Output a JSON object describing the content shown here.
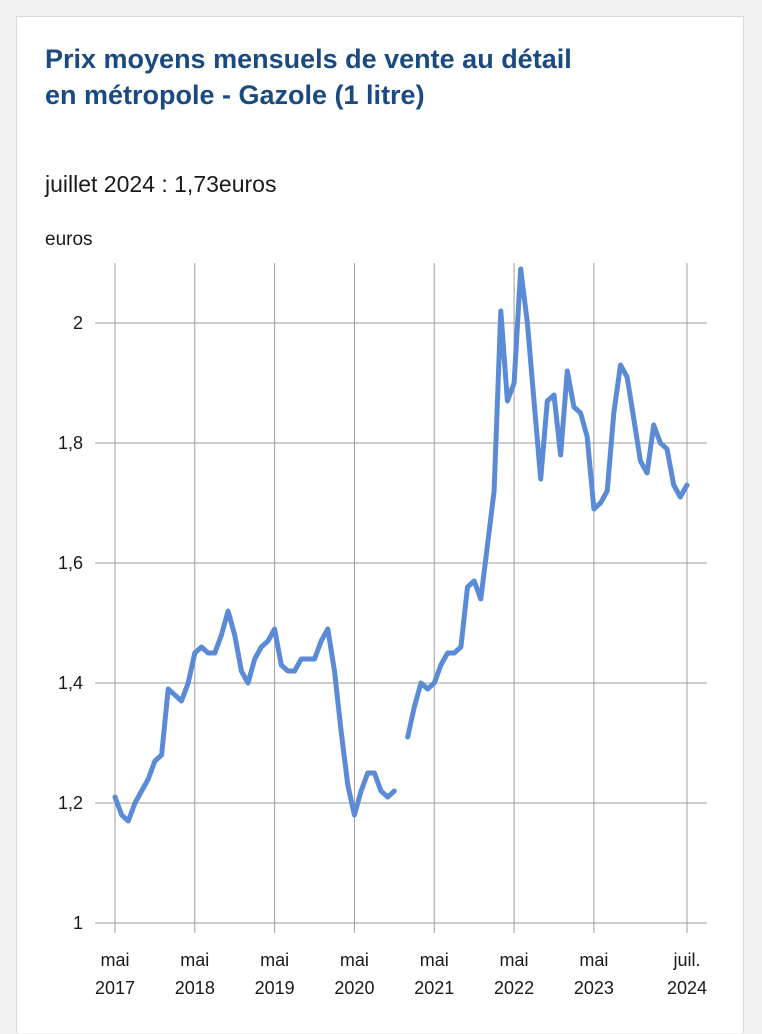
{
  "header": {
    "title": "Prix moyens mensuels de vente au détail en métropole - Gazole (1 litre)",
    "subtitle": "juillet 2024 : 1,73euros",
    "unit": "euros"
  },
  "colors": {
    "line": "#5b8bd6",
    "title": "#1b4a80",
    "grid": "#9e9e9e"
  },
  "chart_data": {
    "type": "line",
    "title": "Prix moyens mensuels de vente au détail en métropole - Gazole (1 litre)",
    "subtitle": "juillet 2024 : 1,73euros",
    "ylabel": "euros",
    "ylim": [
      1,
      2.1
    ],
    "yticks": [
      1,
      1.2,
      1.4,
      1.6,
      1.8,
      2
    ],
    "ytick_labels": [
      "1",
      "1,2",
      "1,4",
      "1,6",
      "1,8",
      "2"
    ],
    "xticks": [
      {
        "date": "2017-05",
        "line1": "mai",
        "line2": "2017"
      },
      {
        "date": "2018-05",
        "line1": "mai",
        "line2": "2018"
      },
      {
        "date": "2019-05",
        "line1": "mai",
        "line2": "2019"
      },
      {
        "date": "2020-05",
        "line1": "mai",
        "line2": "2020"
      },
      {
        "date": "2021-05",
        "line1": "mai",
        "line2": "2021"
      },
      {
        "date": "2022-05",
        "line1": "mai",
        "line2": "2022"
      },
      {
        "date": "2023-05",
        "line1": "mai",
        "line2": "2023"
      },
      {
        "date": "2024-07",
        "line1": "juil.",
        "line2": "2024"
      }
    ],
    "grid": true,
    "series": [
      {
        "points": [
          [
            "2017-05",
            1.21
          ],
          [
            "2017-06",
            1.18
          ],
          [
            "2017-07",
            1.17
          ],
          [
            "2017-08",
            1.2
          ],
          [
            "2017-09",
            1.22
          ],
          [
            "2017-10",
            1.24
          ],
          [
            "2017-11",
            1.27
          ],
          [
            "2017-12",
            1.28
          ],
          [
            "2018-01",
            1.39
          ],
          [
            "2018-02",
            1.38
          ],
          [
            "2018-03",
            1.37
          ],
          [
            "2018-04",
            1.4
          ],
          [
            "2018-05",
            1.45
          ],
          [
            "2018-06",
            1.46
          ],
          [
            "2018-07",
            1.45
          ],
          [
            "2018-08",
            1.45
          ],
          [
            "2018-09",
            1.48
          ],
          [
            "2018-10",
            1.52
          ],
          [
            "2018-11",
            1.48
          ],
          [
            "2018-12",
            1.42
          ],
          [
            "2019-01",
            1.4
          ],
          [
            "2019-02",
            1.44
          ],
          [
            "2019-03",
            1.46
          ],
          [
            "2019-04",
            1.47
          ],
          [
            "2019-05",
            1.49
          ],
          [
            "2019-06",
            1.43
          ],
          [
            "2019-07",
            1.42
          ],
          [
            "2019-08",
            1.42
          ],
          [
            "2019-09",
            1.44
          ],
          [
            "2019-10",
            1.44
          ],
          [
            "2019-11",
            1.44
          ],
          [
            "2019-12",
            1.47
          ],
          [
            "2020-01",
            1.49
          ],
          [
            "2020-02",
            1.42
          ],
          [
            "2020-03",
            1.32
          ],
          [
            "2020-04",
            1.23
          ],
          [
            "2020-05",
            1.18
          ],
          [
            "2020-06",
            1.22
          ],
          [
            "2020-07",
            1.25
          ],
          [
            "2020-08",
            1.25
          ],
          [
            "2020-09",
            1.22
          ],
          [
            "2020-10",
            1.21
          ],
          [
            "2020-11",
            1.22
          ],
          [
            "2020-12",
            null
          ],
          [
            "2021-01",
            1.31
          ],
          [
            "2021-02",
            1.36
          ],
          [
            "2021-03",
            1.4
          ],
          [
            "2021-04",
            1.39
          ],
          [
            "2021-05",
            1.4
          ],
          [
            "2021-06",
            1.43
          ],
          [
            "2021-07",
            1.45
          ],
          [
            "2021-08",
            1.45
          ],
          [
            "2021-09",
            1.46
          ],
          [
            "2021-10",
            1.56
          ],
          [
            "2021-11",
            1.57
          ],
          [
            "2021-12",
            1.54
          ],
          [
            "2022-01",
            1.63
          ],
          [
            "2022-02",
            1.72
          ],
          [
            "2022-03",
            2.02
          ],
          [
            "2022-04",
            1.87
          ],
          [
            "2022-05",
            1.9
          ],
          [
            "2022-06",
            2.09
          ],
          [
            "2022-07",
            2.0
          ],
          [
            "2022-08",
            1.87
          ],
          [
            "2022-09",
            1.74
          ],
          [
            "2022-10",
            1.87
          ],
          [
            "2022-11",
            1.88
          ],
          [
            "2022-12",
            1.78
          ],
          [
            "2023-01",
            1.92
          ],
          [
            "2023-02",
            1.86
          ],
          [
            "2023-03",
            1.85
          ],
          [
            "2023-04",
            1.81
          ],
          [
            "2023-05",
            1.69
          ],
          [
            "2023-06",
            1.7
          ],
          [
            "2023-07",
            1.72
          ],
          [
            "2023-08",
            1.85
          ],
          [
            "2023-09",
            1.93
          ],
          [
            "2023-10",
            1.91
          ],
          [
            "2023-11",
            1.84
          ],
          [
            "2023-12",
            1.77
          ],
          [
            "2024-01",
            1.75
          ],
          [
            "2024-02",
            1.83
          ],
          [
            "2024-03",
            1.8
          ],
          [
            "2024-04",
            1.79
          ],
          [
            "2024-05",
            1.73
          ],
          [
            "2024-06",
            1.71
          ],
          [
            "2024-07",
            1.73
          ]
        ]
      }
    ]
  }
}
